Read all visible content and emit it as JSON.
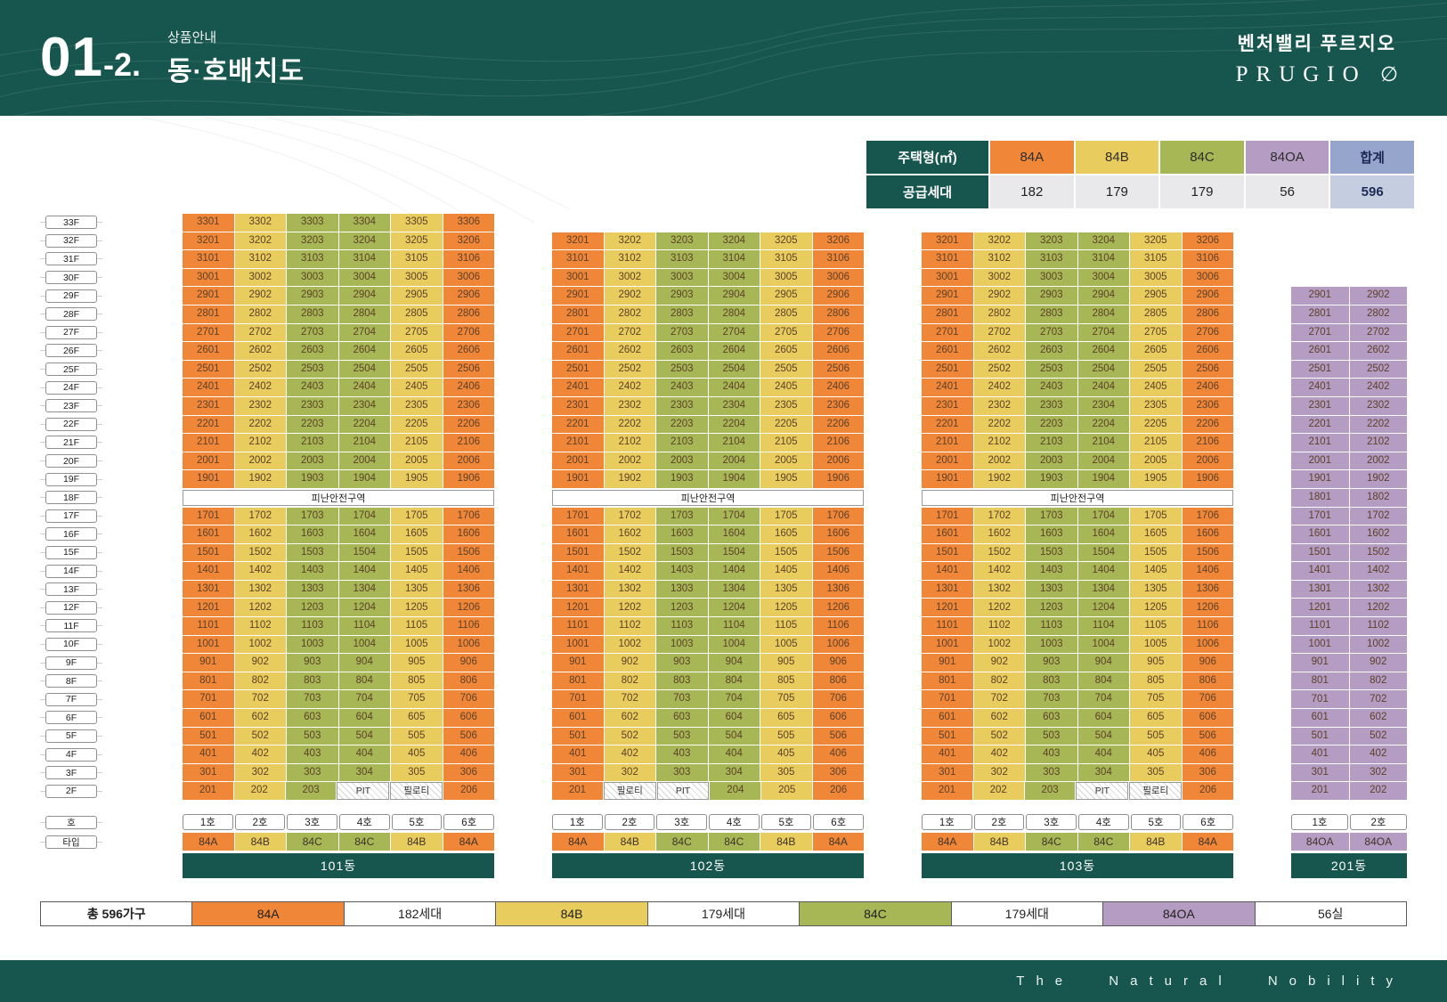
{
  "header": {
    "section_number": "01",
    "section_suffix": "-2.",
    "eyebrow": "상품안내",
    "title": "동·호배치도",
    "brand_kr": "벤처밸리 푸르지오",
    "brand_en": "PRUGIO",
    "brand_mark": "∅"
  },
  "legend": {
    "header_label": "주택형(㎡)",
    "supply_label": "공급세대",
    "total_label": "합계",
    "types": [
      {
        "name": "84A",
        "supply": "182"
      },
      {
        "name": "84B",
        "supply": "179"
      },
      {
        "name": "84C",
        "supply": "179"
      },
      {
        "name": "84OA",
        "supply": "56"
      }
    ],
    "total_supply": "596"
  },
  "floor_rail": {
    "floors": [
      "33F",
      "32F",
      "31F",
      "30F",
      "29F",
      "28F",
      "27F",
      "26F",
      "25F",
      "24F",
      "23F",
      "22F",
      "21F",
      "20F",
      "19F",
      "18F",
      "17F",
      "16F",
      "15F",
      "14F",
      "13F",
      "12F",
      "11F",
      "10F",
      "9F",
      "8F",
      "7F",
      "6F",
      "5F",
      "4F",
      "3F",
      "2F"
    ],
    "ho_label": "호",
    "type_label": "타입"
  },
  "board": {
    "refuge_label": "피난안전구역",
    "pit_label": "PIT",
    "piloti_label": "필로티"
  },
  "buildings": [
    {
      "name": "101동",
      "top_floor": 33,
      "refuge_floor": 18,
      "columns": [
        "1호",
        "2호",
        "3호",
        "4호",
        "5호",
        "6호"
      ],
      "types": [
        "84A",
        "84B",
        "84C",
        "84C",
        "84B",
        "84A"
      ],
      "floor2": [
        "201",
        "202",
        "203",
        "PIT",
        "필로티",
        "206"
      ],
      "floor2_void": [
        3,
        4
      ]
    },
    {
      "name": "102동",
      "top_floor": 32,
      "refuge_floor": 18,
      "columns": [
        "1호",
        "2호",
        "3호",
        "4호",
        "5호",
        "6호"
      ],
      "types": [
        "84A",
        "84B",
        "84C",
        "84C",
        "84B",
        "84A"
      ],
      "floor2": [
        "201",
        "필로티",
        "PIT",
        "204",
        "205",
        "206"
      ],
      "floor2_void": [
        1,
        2
      ]
    },
    {
      "name": "103동",
      "top_floor": 32,
      "refuge_floor": 18,
      "columns": [
        "1호",
        "2호",
        "3호",
        "4호",
        "5호",
        "6호"
      ],
      "types": [
        "84A",
        "84B",
        "84C",
        "84C",
        "84B",
        "84A"
      ],
      "floor2": [
        "201",
        "202",
        "203",
        "PIT",
        "필로티",
        "206"
      ],
      "floor2_void": [
        3,
        4
      ]
    },
    {
      "name": "201동",
      "top_floor": 29,
      "refuge_floor": null,
      "columns": [
        "1호",
        "2호"
      ],
      "types": [
        "84OA",
        "84OA"
      ],
      "floor2": [
        "201",
        "202"
      ],
      "floor2_void": []
    }
  ],
  "summary": {
    "total": "총 596가구",
    "items": [
      {
        "type": "84A",
        "count": "182세대"
      },
      {
        "type": "84B",
        "count": "179세대"
      },
      {
        "type": "84C",
        "count": "179세대"
      },
      {
        "type": "84OA",
        "count": "56실"
      }
    ]
  },
  "footer": {
    "tagline": "The Natural Nobility"
  },
  "colors": {
    "84A": "#EF8638",
    "84B": "#E8CC5E",
    "84C": "#A7B756",
    "84OA": "#B49CC2",
    "teal": "#17564E"
  }
}
